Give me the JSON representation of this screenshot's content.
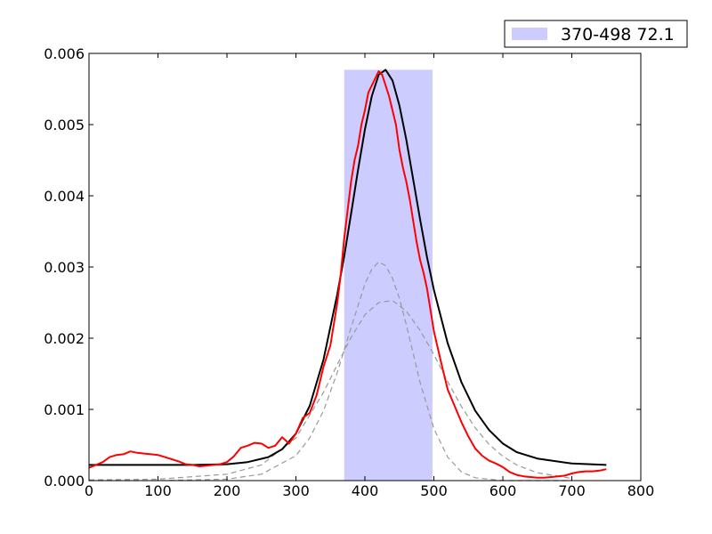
{
  "chart_data": {
    "type": "line",
    "title": "",
    "xlabel": "",
    "ylabel": "",
    "xlim": [
      0,
      800
    ],
    "ylim": [
      0,
      0.006
    ],
    "grid": false,
    "legend_placement": "top-right outside",
    "x_ticks": [
      "0",
      "100",
      "200",
      "300",
      "400",
      "500",
      "600",
      "700",
      "800"
    ],
    "y_ticks": [
      "0.000",
      "0.001",
      "0.002",
      "0.003",
      "0.004",
      "0.005",
      "0.006"
    ],
    "shaded_region": {
      "label": "370-498 72.1",
      "x_start": 370,
      "x_end": 498,
      "y_top": 0.00577,
      "color": "#ccccff"
    },
    "series": [
      {
        "color": "#ff0000",
        "style": "solid-step",
        "x": [
          0,
          10,
          20,
          30,
          40,
          50,
          60,
          70,
          80,
          90,
          100,
          110,
          120,
          130,
          140,
          150,
          160,
          170,
          180,
          190,
          200,
          210,
          220,
          230,
          240,
          250,
          260,
          270,
          280,
          290,
          300,
          310,
          320,
          330,
          340,
          350,
          360,
          365,
          370,
          375,
          380,
          385,
          390,
          395,
          400,
          405,
          410,
          415,
          420,
          425,
          430,
          435,
          440,
          445,
          450,
          455,
          460,
          465,
          470,
          475,
          480,
          485,
          490,
          495,
          500,
          510,
          520,
          530,
          540,
          550,
          560,
          570,
          580,
          590,
          600,
          610,
          620,
          630,
          640,
          650,
          660,
          670,
          680,
          690,
          700,
          710,
          720,
          730,
          740,
          750
        ],
        "y": [
          0.00018,
          0.00022,
          0.00026,
          0.00033,
          0.00036,
          0.00037,
          0.00041,
          0.00039,
          0.00038,
          0.00037,
          0.00036,
          0.00033,
          0.0003,
          0.00027,
          0.00023,
          0.00022,
          0.0002,
          0.00021,
          0.00022,
          0.00023,
          0.00026,
          0.00034,
          0.00046,
          0.00049,
          0.00053,
          0.00052,
          0.00046,
          0.00049,
          0.00061,
          0.00052,
          0.00066,
          0.00088,
          0.00095,
          0.0012,
          0.0016,
          0.0019,
          0.0025,
          0.0029,
          0.0034,
          0.0038,
          0.0042,
          0.0045,
          0.0047,
          0.005,
          0.0052,
          0.00545,
          0.00555,
          0.00565,
          0.00575,
          0.0057,
          0.00555,
          0.0054,
          0.0052,
          0.005,
          0.00465,
          0.0044,
          0.0042,
          0.00395,
          0.00365,
          0.00335,
          0.0031,
          0.00292,
          0.0027,
          0.0024,
          0.0021,
          0.00168,
          0.00128,
          0.00105,
          0.00082,
          0.00062,
          0.00045,
          0.00035,
          0.00028,
          0.00024,
          0.00019,
          0.00012,
          8e-05,
          6e-05,
          5e-05,
          4e-05,
          4e-05,
          5e-05,
          6e-05,
          7e-05,
          0.0001,
          0.00012,
          0.00013,
          0.00013,
          0.00014,
          0.00016
        ]
      },
      {
        "color": "#000000",
        "style": "solid",
        "x": [
          0,
          50,
          100,
          150,
          200,
          230,
          260,
          280,
          300,
          320,
          340,
          360,
          370,
          380,
          390,
          400,
          410,
          420,
          430,
          440,
          450,
          460,
          470,
          480,
          490,
          500,
          520,
          540,
          560,
          580,
          600,
          620,
          650,
          700,
          750
        ],
        "y": [
          0.00022,
          0.00022,
          0.00022,
          0.00022,
          0.00023,
          0.00026,
          0.00033,
          0.00044,
          0.00066,
          0.00105,
          0.0017,
          0.00262,
          0.00315,
          0.00375,
          0.00436,
          0.00493,
          0.0054,
          0.0057,
          0.00577,
          0.00562,
          0.00527,
          0.00479,
          0.00423,
          0.00367,
          0.00314,
          0.00268,
          0.00193,
          0.00138,
          0.00098,
          0.00071,
          0.00052,
          0.0004,
          0.00031,
          0.00024,
          0.00022
        ]
      },
      {
        "color": "#999999",
        "style": "dashed",
        "x": [
          0,
          100,
          200,
          250,
          300,
          320,
          340,
          360,
          380,
          400,
          410,
          420,
          430,
          440,
          450,
          460,
          480,
          500,
          520,
          540,
          560,
          600,
          650,
          700
        ],
        "y": [
          0.0,
          0.0,
          2e-05,
          9e-05,
          0.00035,
          0.0006,
          0.00098,
          0.00152,
          0.00215,
          0.00276,
          0.00297,
          0.00307,
          0.00302,
          0.00284,
          0.00256,
          0.00219,
          0.00138,
          0.00073,
          0.00033,
          0.00012,
          4e-05,
          0.0,
          0.0,
          0.0
        ]
      },
      {
        "color": "#999999",
        "style": "dashed",
        "x": [
          0,
          100,
          200,
          250,
          300,
          340,
          360,
          380,
          400,
          420,
          440,
          460,
          480,
          500,
          520,
          540,
          560,
          580,
          600,
          620,
          650,
          700
        ],
        "y": [
          1e-05,
          2e-05,
          9e-05,
          0.00022,
          0.0006,
          0.00124,
          0.00163,
          0.00201,
          0.00233,
          0.0025,
          0.00253,
          0.00238,
          0.00211,
          0.00177,
          0.00139,
          0.00104,
          0.00074,
          0.00051,
          0.00034,
          0.00022,
          0.00011,
          3e-05
        ]
      }
    ]
  }
}
